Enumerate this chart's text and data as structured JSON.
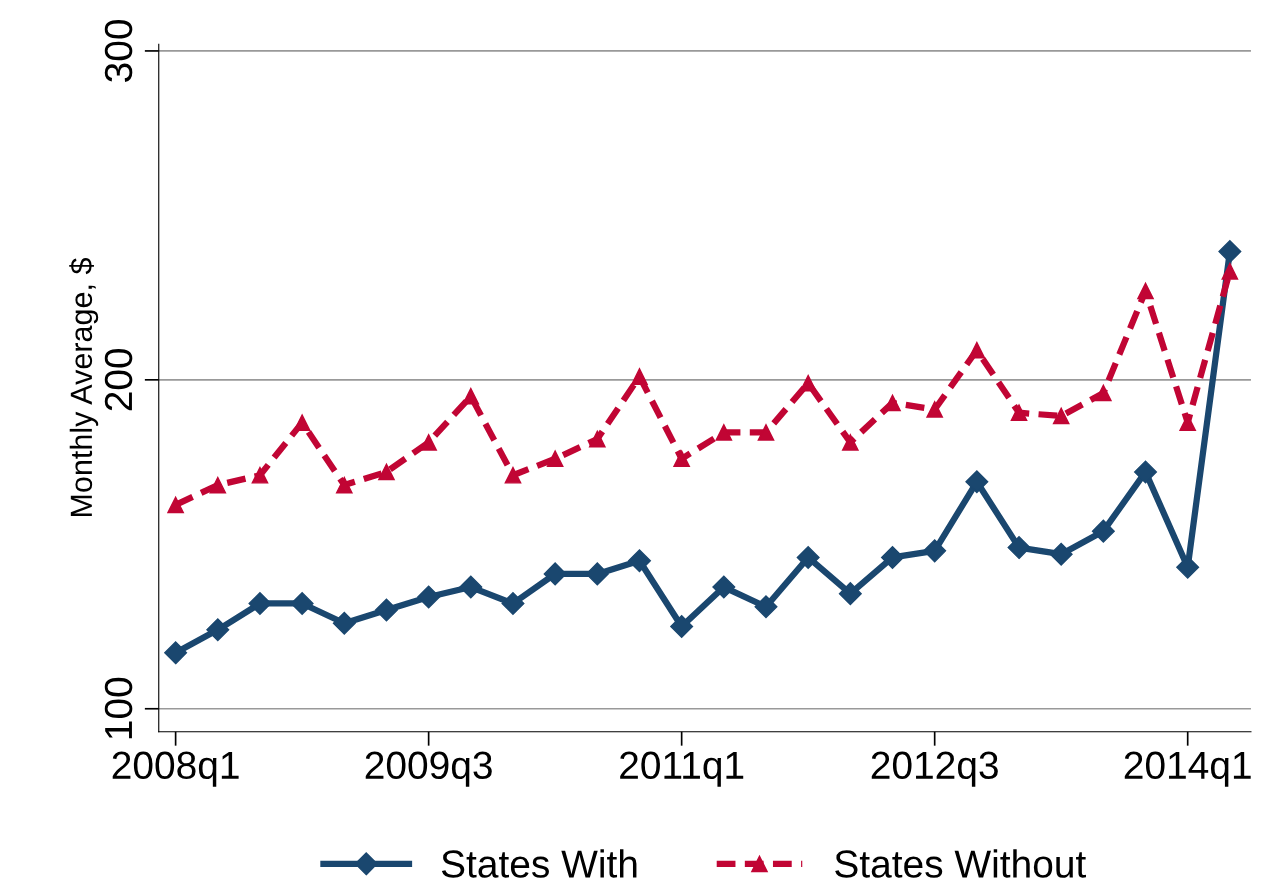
{
  "chart_data": {
    "type": "line",
    "ylabel": "Monthly Average, $",
    "categories": [
      "2008q1",
      null,
      null,
      null,
      null,
      null,
      "2009q3",
      null,
      null,
      null,
      null,
      null,
      "2011q1",
      null,
      null,
      null,
      null,
      null,
      "2012q3",
      null,
      null,
      null,
      null,
      null,
      "2014q1",
      null
    ],
    "series": [
      {
        "name": "States With",
        "color": "#1a476f",
        "marker": "diamond",
        "line_style": "solid",
        "values": [
          117,
          124,
          132,
          132,
          126,
          130,
          134,
          137,
          132,
          141,
          141,
          145,
          125,
          137,
          131,
          146,
          135,
          146,
          148,
          169,
          149,
          147,
          154,
          172,
          143,
          239
        ]
      },
      {
        "name": "States Without",
        "color": "#c10534",
        "marker": "triangle",
        "line_style": "dashed",
        "values": [
          162,
          168,
          171,
          187,
          168,
          172,
          181,
          195,
          171,
          176,
          182,
          201,
          176,
          184,
          184,
          199,
          181,
          193,
          191,
          209,
          190,
          189,
          196,
          227,
          187,
          233
        ]
      }
    ],
    "ylim": [
      93,
      302
    ],
    "yticks": [
      100,
      200,
      300
    ],
    "grid": "y",
    "legend": "bottom"
  }
}
